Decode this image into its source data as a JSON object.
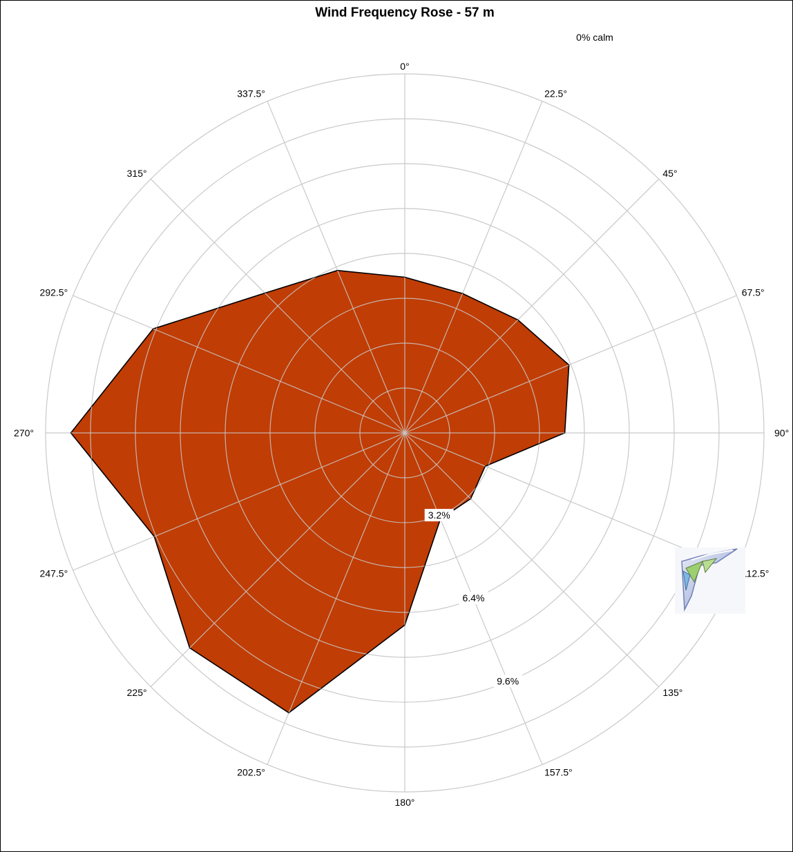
{
  "chart_data": {
    "type": "radar",
    "title": "Wind Frequency Rose - 57 m",
    "calm_label": "0% calm",
    "directions": [
      "0°",
      "22.5°",
      "45°",
      "67.5°",
      "90°",
      "112.5°",
      "135°",
      "157.5°",
      "180°",
      "202.5°",
      "225°",
      "247.5°",
      "270°",
      "292.5°",
      "315°",
      "337.5°"
    ],
    "values": [
      5.55,
      5.38,
      5.7,
      6.33,
      5.7,
      3.1,
      3.32,
      3.32,
      6.85,
      10.8,
      10.84,
      9.66,
      11.9,
      9.7,
      7.05,
      6.27
    ],
    "series_color": "#C03D05",
    "rmax": 12.8,
    "ring_step": 1.6,
    "radial_tick_labels": [
      {
        "value": 3.2,
        "text": "3.2%"
      },
      {
        "value": 6.4,
        "text": "6.4%"
      },
      {
        "value": 9.6,
        "text": "9.6%"
      }
    ],
    "grid": true
  },
  "logo": {
    "name": "wind-software-logo"
  }
}
